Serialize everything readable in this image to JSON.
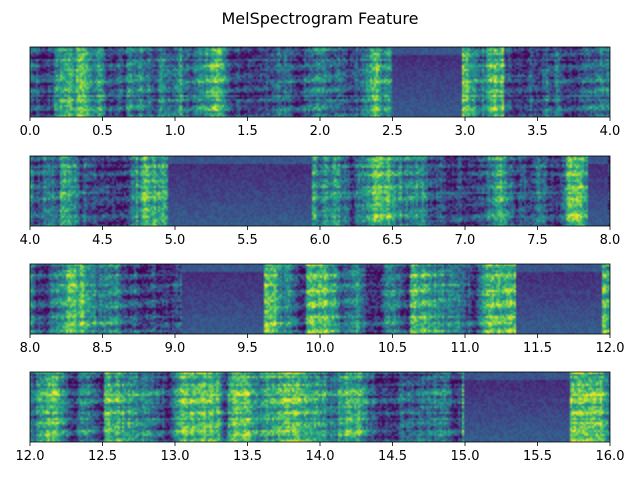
{
  "chart_data": {
    "title": "MelSpectrogram Feature",
    "type": "heatmap",
    "colormap": "viridis",
    "yaxis_ticks": "none",
    "grid": false,
    "legend": "none",
    "panels": [
      {
        "xlim": [
          0.0,
          4.0
        ],
        "ticks": [
          0.0,
          0.5,
          1.0,
          1.5,
          2.0,
          2.5,
          3.0,
          3.5,
          4.0
        ],
        "tick_labels": [
          "0.0",
          "0.5",
          "1.0",
          "1.5",
          "2.0",
          "2.5",
          "3.0",
          "3.5",
          "4.0"
        ],
        "quiet_regions": [
          [
            2.5,
            2.98
          ]
        ]
      },
      {
        "xlim": [
          4.0,
          8.0
        ],
        "ticks": [
          4.0,
          4.5,
          5.0,
          5.5,
          6.0,
          6.5,
          7.0,
          7.5,
          8.0
        ],
        "tick_labels": [
          "4.0",
          "4.5",
          "5.0",
          "5.5",
          "6.0",
          "6.5",
          "7.0",
          "7.5",
          "8.0"
        ],
        "quiet_regions": [
          [
            4.95,
            5.95
          ],
          [
            7.85,
            7.98
          ]
        ]
      },
      {
        "xlim": [
          8.0,
          12.0
        ],
        "ticks": [
          8.0,
          8.5,
          9.0,
          9.5,
          10.0,
          10.5,
          11.0,
          11.5,
          12.0
        ],
        "tick_labels": [
          "8.0",
          "8.5",
          "9.0",
          "9.5",
          "10.0",
          "10.5",
          "11.0",
          "11.5",
          "12.0"
        ],
        "quiet_regions": [
          [
            9.05,
            9.62
          ],
          [
            11.35,
            11.95
          ]
        ]
      },
      {
        "xlim": [
          12.0,
          16.0
        ],
        "ticks": [
          12.0,
          12.5,
          13.0,
          13.5,
          14.0,
          14.5,
          15.0,
          15.5,
          16.0
        ],
        "tick_labels": [
          "12.0",
          "12.5",
          "13.0",
          "13.5",
          "14.0",
          "14.5",
          "15.0",
          "15.5",
          "16.0"
        ],
        "quiet_regions": [
          [
            15.0,
            15.72
          ]
        ]
      }
    ]
  }
}
